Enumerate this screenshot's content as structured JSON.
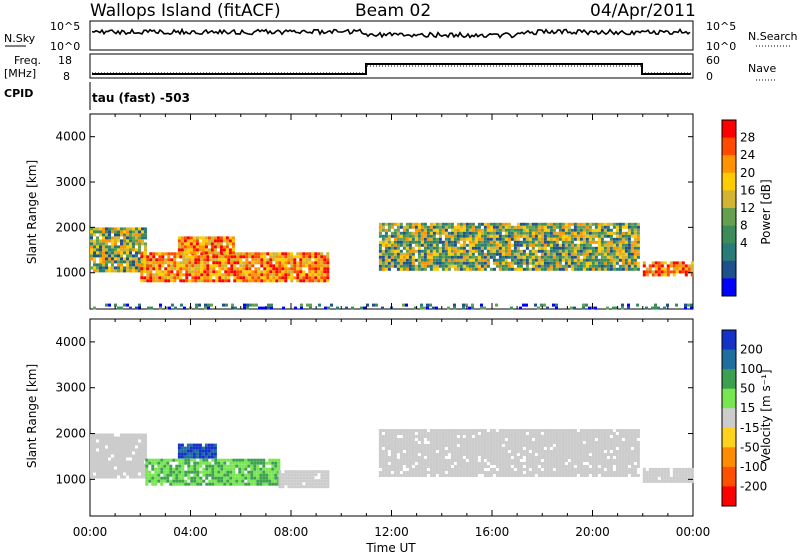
{
  "header": {
    "site": "Wallops Island (fitACF)",
    "beam": "Beam 02",
    "date": "04/Apr/2011"
  },
  "strips": {
    "nsky_label": "N.Sky",
    "nsky_ticks": [
      "10^5",
      "10^0"
    ],
    "nsearch_label": "N.Search",
    "nsearch_ticks": [
      "10^5",
      "10^0"
    ],
    "freq_label": "Freq.",
    "freq_unit": "[MHz]",
    "freq_ticks": [
      "18",
      "8"
    ],
    "nave_label": "Nave",
    "nave_ticks": [
      "60",
      "0"
    ],
    "cpid_label": "CPID",
    "cpid_value": "tau (fast) -503"
  },
  "power_scale": {
    "label": "Power [dB]",
    "ticks": [
      "28",
      "24",
      "20",
      "16",
      "12",
      "8",
      "4"
    ],
    "colors": [
      "#ff0000",
      "#ff4a00",
      "#ff9400",
      "#ffcc00",
      "#d2b432",
      "#64a050",
      "#3c8c5a",
      "#287c78",
      "#1e508c",
      "#0000ff"
    ]
  },
  "velocity_scale": {
    "label": "Velocity [m s⁻¹]",
    "ticks": [
      "200",
      "100",
      "50",
      "15",
      "-15",
      "-50",
      "-100",
      "-200"
    ],
    "colors": [
      "#1432c8",
      "#1e6ea0",
      "#3ca050",
      "#78e650",
      "#cccccc",
      "#ffd21e",
      "#ff8c00",
      "#ff5000",
      "#ff0000"
    ]
  },
  "x_axis": {
    "title": "Time UT",
    "ticks": [
      "00:00",
      "04:00",
      "08:00",
      "12:00",
      "16:00",
      "20:00",
      "00:00"
    ]
  },
  "chart_data": [
    {
      "type": "heatmap",
      "name": "power",
      "ylabel": "Slant Range [km]",
      "xlabel": "Time UT",
      "ylim": [
        200,
        4500
      ],
      "xlim_hours": [
        0,
        24
      ],
      "yticks": [
        1000,
        2000,
        3000,
        4000
      ],
      "colorbar_label": "Power [dB]",
      "regions": [
        {
          "t0": 0.0,
          "t1": 2.2,
          "r0": 1050,
          "r1": 2000,
          "level": "mid"
        },
        {
          "t0": 2.0,
          "t1": 9.5,
          "r0": 850,
          "r1": 1450,
          "level": "high"
        },
        {
          "t0": 3.5,
          "t1": 5.7,
          "r0": 1450,
          "r1": 1800,
          "level": "high"
        },
        {
          "t0": 11.5,
          "t1": 21.8,
          "r0": 1100,
          "r1": 2100,
          "level": "mid"
        },
        {
          "t0": 22.0,
          "t1": 24.0,
          "r0": 950,
          "r1": 1250,
          "level": "high"
        },
        {
          "t0": 0.0,
          "t1": 24.0,
          "r0": 220,
          "r1": 320,
          "level": "low"
        }
      ]
    },
    {
      "type": "heatmap",
      "name": "velocity",
      "ylabel": "Slant Range [km]",
      "xlabel": "Time UT",
      "ylim": [
        200,
        4500
      ],
      "xlim_hours": [
        0,
        24
      ],
      "yticks": [
        1000,
        2000,
        3000,
        4000
      ],
      "colorbar_label": "Velocity [m s⁻¹]",
      "regions": [
        {
          "t0": 0.0,
          "t1": 2.2,
          "r0": 1050,
          "r1": 2000,
          "velocity": 0
        },
        {
          "t0": 3.5,
          "t1": 5.0,
          "r0": 1500,
          "r1": 1780,
          "velocity": 150
        },
        {
          "t0": 2.2,
          "t1": 7.5,
          "r0": 900,
          "r1": 1450,
          "velocity": 30
        },
        {
          "t0": 7.5,
          "t1": 9.5,
          "r0": 850,
          "r1": 1200,
          "velocity": 0
        },
        {
          "t0": 11.5,
          "t1": 21.8,
          "r0": 1100,
          "r1": 2100,
          "velocity": 0
        },
        {
          "t0": 22.0,
          "t1": 24.0,
          "r0": 950,
          "r1": 1250,
          "velocity": 0
        }
      ]
    }
  ]
}
